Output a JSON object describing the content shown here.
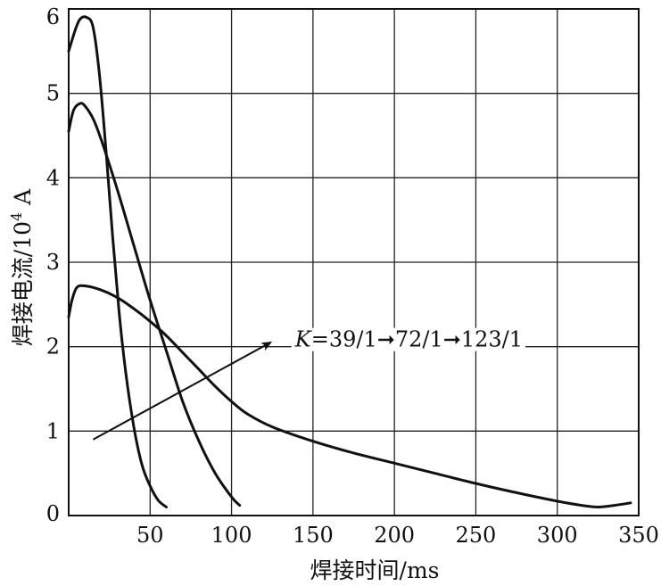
{
  "chart_data": {
    "type": "line",
    "title": "",
    "xlabel": "焊接时间/ms",
    "ylabel_main": "焊接电流/10",
    "ylabel_exp": "4",
    "ylabel_unit": " A",
    "xlim": [
      0,
      350
    ],
    "ylim": [
      0,
      6
    ],
    "grid": true,
    "x_ticks": [
      {
        "value": 50,
        "label": "50"
      },
      {
        "value": 100,
        "label": "100"
      },
      {
        "value": 150,
        "label": "150"
      },
      {
        "value": 200,
        "label": "200"
      },
      {
        "value": 250,
        "label": "250"
      },
      {
        "value": 300,
        "label": "300"
      },
      {
        "value": 350,
        "label": "350"
      }
    ],
    "y_ticks": [
      {
        "value": 0,
        "label": "0"
      },
      {
        "value": 1,
        "label": "1"
      },
      {
        "value": 2,
        "label": "2"
      },
      {
        "value": 3,
        "label": "3"
      },
      {
        "value": 4,
        "label": "4"
      },
      {
        "value": 5,
        "label": "5"
      },
      {
        "value": 6,
        "label": "6"
      }
    ],
    "annotation": {
      "k_symbol": "K",
      "k_text": "=39/1",
      "ratio2": "72/1",
      "ratio3": "123/1",
      "arrow_from": [
        15,
        0.9
      ],
      "arrow_to": [
        124,
        2.05
      ],
      "text_anchor": [
        139,
        2.0
      ]
    },
    "series": [
      {
        "x": [
          0,
          4,
          7,
          11,
          15,
          19,
          23,
          27,
          31,
          35,
          40,
          45,
          50,
          55,
          60
        ],
        "y": [
          5.5,
          5.75,
          5.88,
          5.9,
          5.78,
          5.2,
          4.3,
          3.3,
          2.4,
          1.7,
          1.05,
          0.6,
          0.35,
          0.18,
          0.1
        ]
      },
      {
        "x": [
          0,
          3,
          7,
          10,
          15,
          20,
          30,
          40,
          50,
          60,
          70,
          80,
          90,
          100,
          105
        ],
        "y": [
          4.55,
          4.8,
          4.88,
          4.85,
          4.7,
          4.45,
          3.85,
          3.2,
          2.55,
          1.95,
          1.35,
          0.88,
          0.5,
          0.22,
          0.12
        ]
      },
      {
        "x": [
          0,
          2,
          5,
          10,
          20,
          30,
          40,
          50,
          60,
          70,
          80,
          90,
          100,
          110,
          125,
          150,
          175,
          200,
          225,
          250,
          275,
          300,
          315,
          325,
          335,
          345
        ],
        "y": [
          2.35,
          2.55,
          2.7,
          2.72,
          2.67,
          2.58,
          2.45,
          2.3,
          2.13,
          1.93,
          1.73,
          1.53,
          1.35,
          1.2,
          1.05,
          0.88,
          0.74,
          0.62,
          0.5,
          0.38,
          0.27,
          0.17,
          0.12,
          0.1,
          0.12,
          0.15
        ]
      }
    ]
  }
}
